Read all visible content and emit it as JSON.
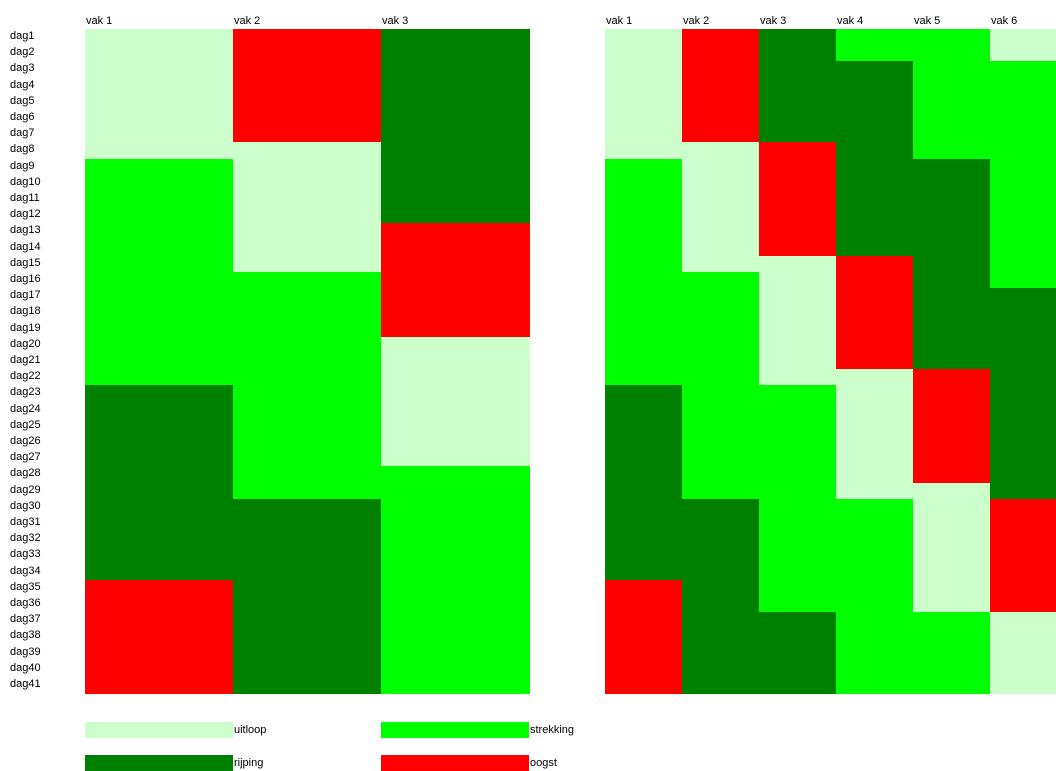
{
  "chart_data": {
    "type": "heatmap",
    "days": [
      "dag1",
      "dag2",
      "dag3",
      "dag4",
      "dag5",
      "dag6",
      "dag7",
      "dag8",
      "dag9",
      "dag10",
      "dag11",
      "dag12",
      "dag13",
      "dag14",
      "dag15",
      "dag16",
      "dag17",
      "dag18",
      "dag19",
      "dag20",
      "dag21",
      "dag22",
      "dag23",
      "dag24",
      "dag25",
      "dag26",
      "dag27",
      "dag28",
      "dag29",
      "dag30",
      "dag31",
      "dag32",
      "dag33",
      "dag34",
      "dag35",
      "dag36",
      "dag37",
      "dag38",
      "dag39",
      "dag40",
      "dag41"
    ],
    "states": {
      "uitloop": {
        "label": "uitloop",
        "color": "#ccffcc"
      },
      "strekking": {
        "label": "strekking",
        "color": "#00ff00"
      },
      "rijping": {
        "label": "rijping",
        "color": "#008000"
      },
      "oogst": {
        "label": "oogst",
        "color": "#ff0000"
      }
    },
    "legend": [
      "uitloop",
      "strekking",
      "rijping",
      "oogst"
    ],
    "panels": [
      {
        "columns": [
          "vak 1",
          "vak 2",
          "vak 3"
        ],
        "cells": [
          [
            {
              "state": "uitloop",
              "from": 1,
              "to": 8
            },
            {
              "state": "strekking",
              "from": 9,
              "to": 22
            },
            {
              "state": "rijping",
              "from": 23,
              "to": 34
            },
            {
              "state": "oogst",
              "from": 35,
              "to": 41
            }
          ],
          [
            {
              "state": "oogst",
              "from": 1,
              "to": 7
            },
            {
              "state": "uitloop",
              "from": 8,
              "to": 15
            },
            {
              "state": "strekking",
              "from": 16,
              "to": 29
            },
            {
              "state": "rijping",
              "from": 30,
              "to": 41
            }
          ],
          [
            {
              "state": "rijping",
              "from": 1,
              "to": 12
            },
            {
              "state": "oogst",
              "from": 13,
              "to": 19
            },
            {
              "state": "uitloop",
              "from": 20,
              "to": 27
            },
            {
              "state": "strekking",
              "from": 28,
              "to": 41
            }
          ]
        ]
      },
      {
        "columns": [
          "vak 1",
          "vak 2",
          "vak 3",
          "vak 4",
          "vak 5",
          "vak 6"
        ],
        "cells": [
          [
            {
              "state": "uitloop",
              "from": 1,
              "to": 8
            },
            {
              "state": "strekking",
              "from": 9,
              "to": 22
            },
            {
              "state": "rijping",
              "from": 23,
              "to": 34
            },
            {
              "state": "oogst",
              "from": 35,
              "to": 41
            }
          ],
          [
            {
              "state": "oogst",
              "from": 1,
              "to": 7
            },
            {
              "state": "uitloop",
              "from": 8,
              "to": 15
            },
            {
              "state": "strekking",
              "from": 16,
              "to": 29
            },
            {
              "state": "rijping",
              "from": 30,
              "to": 41
            }
          ],
          [
            {
              "state": "rijping",
              "from": 1,
              "to": 7
            },
            {
              "state": "oogst",
              "from": 8,
              "to": 14
            },
            {
              "state": "uitloop",
              "from": 15,
              "to": 22
            },
            {
              "state": "strekking",
              "from": 23,
              "to": 36
            },
            {
              "state": "rijping",
              "from": 37,
              "to": 41
            }
          ],
          [
            {
              "state": "strekking",
              "from": 1,
              "to": 2
            },
            {
              "state": "rijping",
              "from": 3,
              "to": 14
            },
            {
              "state": "oogst",
              "from": 15,
              "to": 21
            },
            {
              "state": "uitloop",
              "from": 22,
              "to": 29
            },
            {
              "state": "strekking",
              "from": 30,
              "to": 41
            }
          ],
          [
            {
              "state": "strekking",
              "from": 1,
              "to": 8
            },
            {
              "state": "rijping",
              "from": 9,
              "to": 21
            },
            {
              "state": "oogst",
              "from": 22,
              "to": 28
            },
            {
              "state": "uitloop",
              "from": 29,
              "to": 36
            },
            {
              "state": "strekking",
              "from": 37,
              "to": 41
            }
          ],
          [
            {
              "state": "uitloop",
              "from": 1,
              "to": 2
            },
            {
              "state": "strekking",
              "from": 3,
              "to": 16
            },
            {
              "state": "rijping",
              "from": 17,
              "to": 29
            },
            {
              "state": "oogst",
              "from": 30,
              "to": 36
            },
            {
              "state": "uitloop",
              "from": 37,
              "to": 41
            }
          ]
        ]
      }
    ]
  }
}
